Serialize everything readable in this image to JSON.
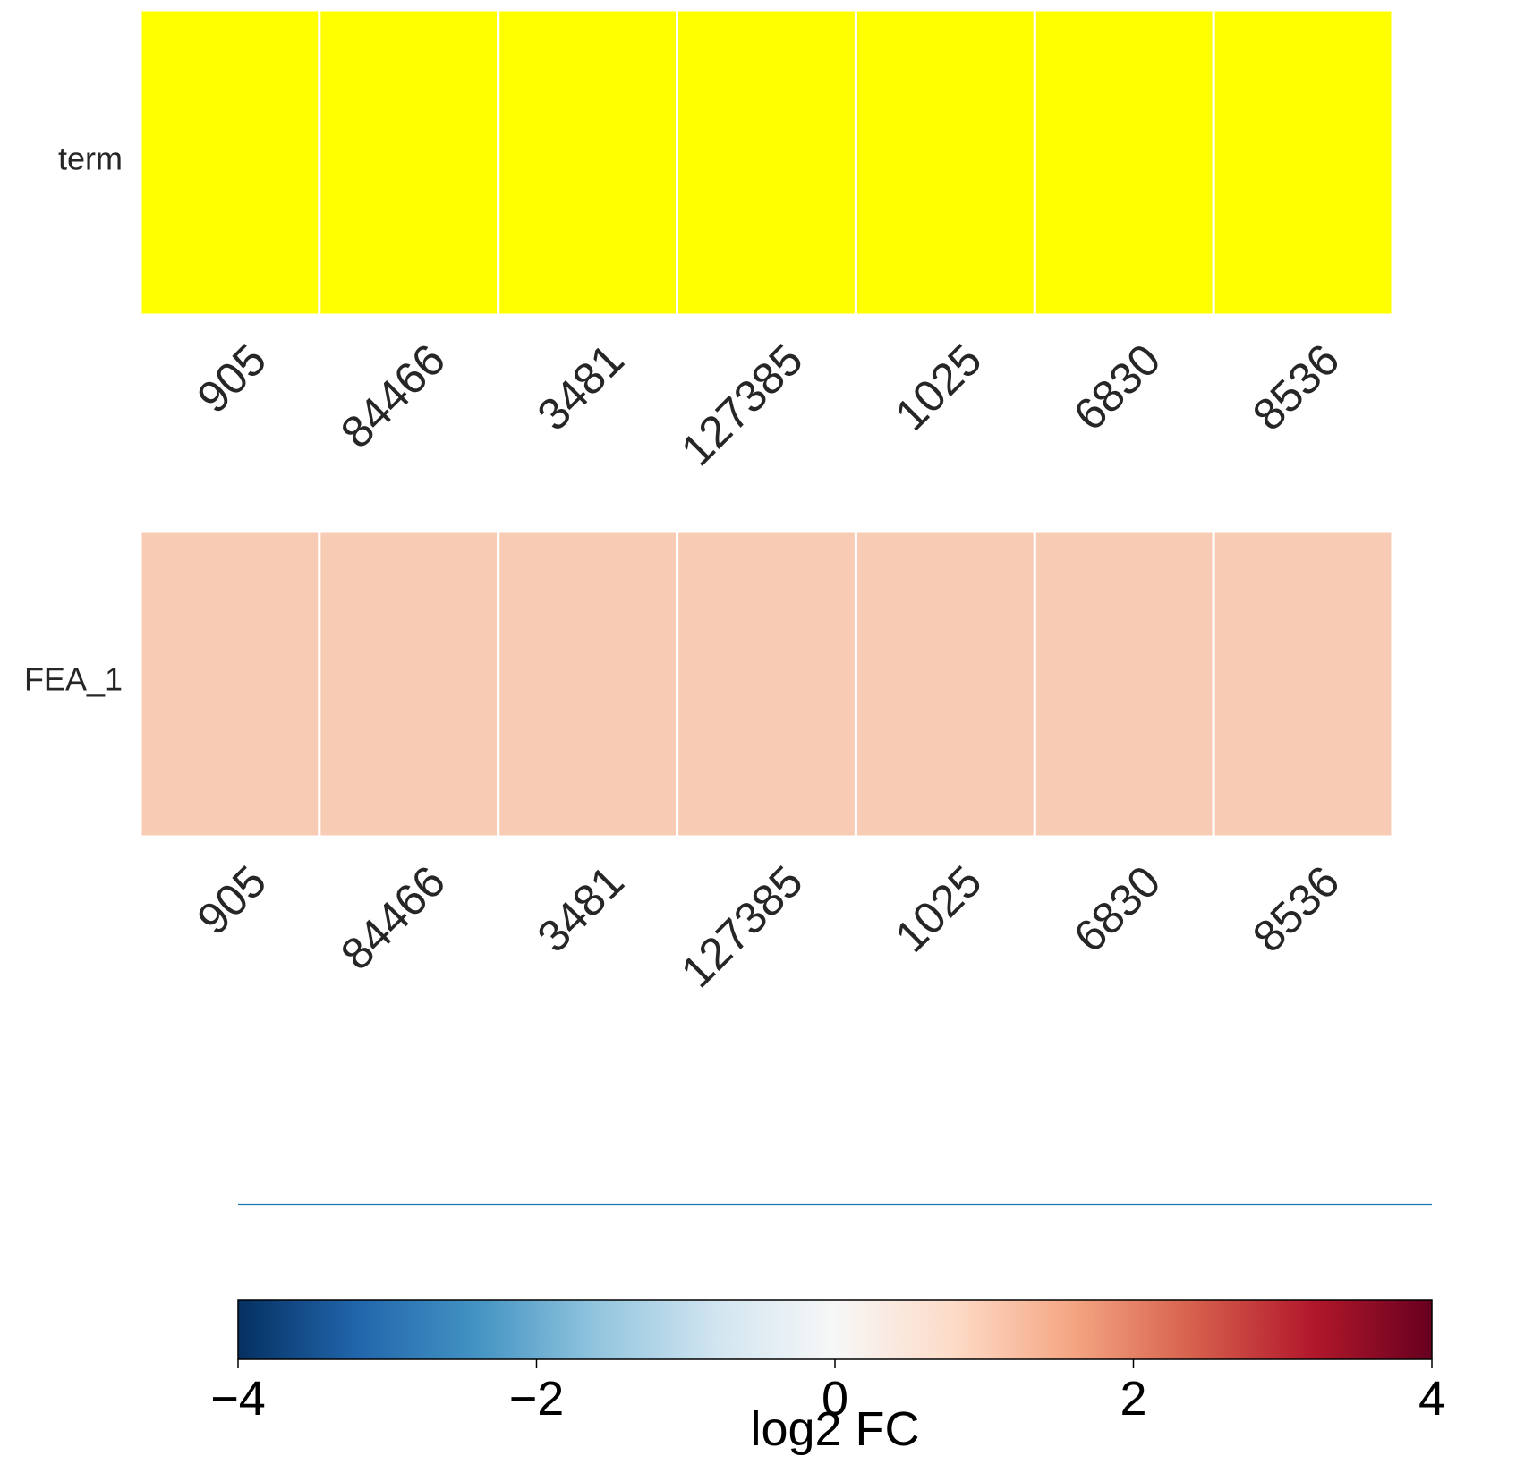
{
  "chart_data": [
    {
      "type": "heatmap",
      "row_label": "term",
      "categories": [
        "905",
        "84466",
        "3481",
        "127385",
        "1025",
        "6830",
        "8536"
      ],
      "cell_color": "#ffff00"
    },
    {
      "type": "heatmap",
      "row_label": "FEA_1",
      "categories": [
        "905",
        "84466",
        "3481",
        "127385",
        "1025",
        "6830",
        "8536"
      ],
      "values": [
        1.0,
        1.0,
        1.0,
        1.0,
        1.0,
        1.0,
        1.0
      ],
      "cell_color": "#f8cbb4"
    },
    {
      "type": "line",
      "x": [
        -4,
        4
      ],
      "y": [
        0,
        0
      ],
      "line_color": "#1f77b4"
    }
  ],
  "colorbar": {
    "label": "log2 FC",
    "range": [
      -4,
      4
    ],
    "ticks": [
      -4,
      -2,
      0,
      2,
      4
    ],
    "tick_labels": [
      "−4",
      "−2",
      "0",
      "2",
      "4"
    ],
    "colormap_stops": [
      "#053061",
      "#2166ac",
      "#4393c3",
      "#92c5de",
      "#d1e5f0",
      "#f7f7f7",
      "#fddbc7",
      "#f4a582",
      "#d6604d",
      "#b2182b",
      "#67001f"
    ]
  }
}
